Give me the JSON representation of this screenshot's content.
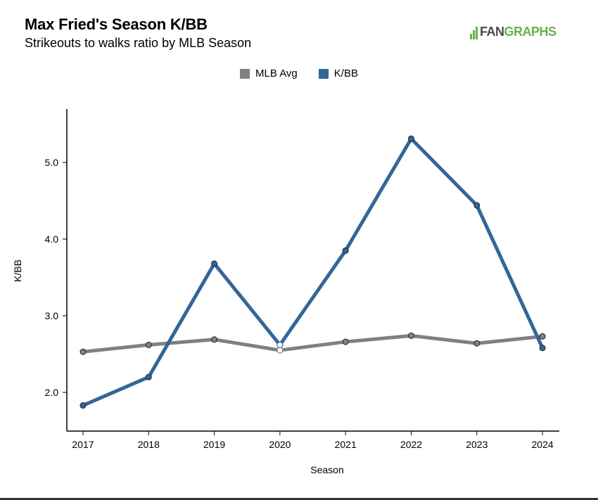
{
  "header": {
    "title": "Max Fried's Season K/BB",
    "subtitle": "Strikeouts to walks ratio by MLB Season"
  },
  "logo": {
    "part1": "FAN",
    "part2": "GRAPHS",
    "colors": {
      "gray": "#4a4a4a",
      "green": "#6ab04c"
    }
  },
  "chart_data": {
    "type": "line",
    "x": [
      "2017",
      "2018",
      "2019",
      "2020",
      "2021",
      "2022",
      "2023",
      "2024"
    ],
    "series": [
      {
        "name": "MLB Avg",
        "color": "#808080",
        "values": [
          2.53,
          2.62,
          2.69,
          2.55,
          2.66,
          2.74,
          2.64,
          2.73
        ]
      },
      {
        "name": "K/BB",
        "color": "#336699",
        "values": [
          1.83,
          2.2,
          3.68,
          2.62,
          3.85,
          5.31,
          4.44,
          2.58
        ]
      }
    ],
    "xlabel": "Season",
    "ylabel": "K/BB",
    "yticks": [
      "2.0",
      "3.0",
      "4.0",
      "5.0"
    ],
    "ylim": [
      1.5,
      5.8
    ],
    "grid": false,
    "legend_position": "top-center"
  }
}
